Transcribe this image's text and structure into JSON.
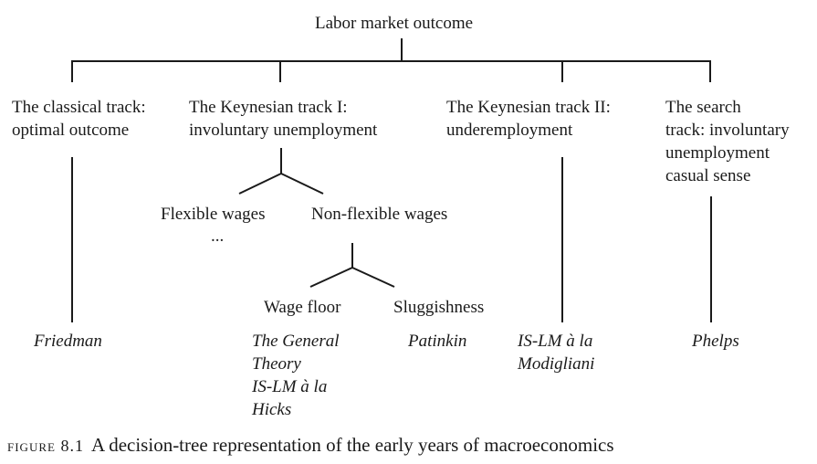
{
  "root": "Labor market outcome",
  "tracks": {
    "classical": {
      "line1": "The classical track:",
      "line2": "optimal outcome",
      "author": "Friedman"
    },
    "keynes1": {
      "line1": "The Keynesian track I:",
      "line2": "involuntary unemployment"
    },
    "keynes2": {
      "line1": "The Keynesian track II:",
      "line2": "underemployment",
      "author1": "IS-LM à la",
      "author2": "Modigliani"
    },
    "search": {
      "line1": "The search",
      "line2": "track: involuntary",
      "line3": "unemployment",
      "line4": "casual sense",
      "author": "Phelps"
    }
  },
  "wages": {
    "flexible": "Flexible wages",
    "flexible_cont": "...",
    "nonflexible": "Non-flexible wages"
  },
  "nonflex": {
    "floor": "Wage floor",
    "floor_refs": [
      "The General",
      "Theory",
      "IS-LM à la",
      "Hicks"
    ],
    "sluggish": "Sluggishness",
    "sluggish_ref": "Patinkin"
  },
  "caption": {
    "label": "figure 8.1",
    "text": "A decision-tree representation of the early years of macroeconomics"
  }
}
